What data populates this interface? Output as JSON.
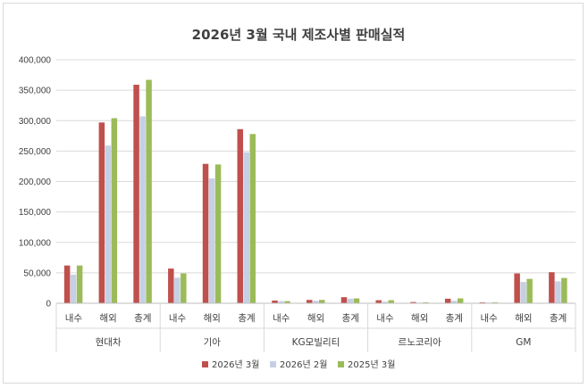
{
  "chart_data": {
    "type": "bar",
    "title": "2026년 3월 국내 제조사별 판매실적",
    "xlabel": "",
    "ylabel": "",
    "ylim": [
      0,
      400000
    ],
    "yticks": [
      0,
      50000,
      100000,
      150000,
      200000,
      250000,
      300000,
      350000,
      400000
    ],
    "ytick_labels": [
      "0",
      "50,000",
      "100,000",
      "150,000",
      "200,000",
      "250,000",
      "300,000",
      "350,000",
      "400,000"
    ],
    "grid": true,
    "legend_position": "bottom",
    "groups": [
      {
        "name": "현대차",
        "categories": [
          "내수",
          "해외",
          "총계"
        ]
      },
      {
        "name": "기아",
        "categories": [
          "내수",
          "해외",
          "총계"
        ]
      },
      {
        "name": "KG모빌리티",
        "categories": [
          "내수",
          "해외",
          "총계"
        ]
      },
      {
        "name": "르노코리아",
        "categories": [
          "내수",
          "해외",
          "총계"
        ]
      },
      {
        "name": "GM",
        "categories": [
          "내수",
          "해외",
          "총계"
        ]
      }
    ],
    "series": [
      {
        "name": "2026년 3월",
        "color": "#c0504d",
        "values": [
          62000,
          297000,
          359000,
          57000,
          229000,
          286000,
          4500,
          5500,
          10000,
          5000,
          2000,
          7500,
          1500,
          49000,
          51000
        ]
      },
      {
        "name": "2026년 2월",
        "color": "#c5d0e4",
        "values": [
          47000,
          259000,
          307000,
          42000,
          205000,
          248000,
          3500,
          4000,
          7500,
          2500,
          1000,
          4000,
          1000,
          35000,
          36000
        ]
      },
      {
        "name": "2025년 3월",
        "color": "#9bbb59",
        "values": [
          62000,
          304000,
          367000,
          49000,
          228000,
          278000,
          3500,
          5500,
          8000,
          5000,
          1500,
          8000,
          1500,
          40000,
          41500
        ]
      }
    ]
  }
}
